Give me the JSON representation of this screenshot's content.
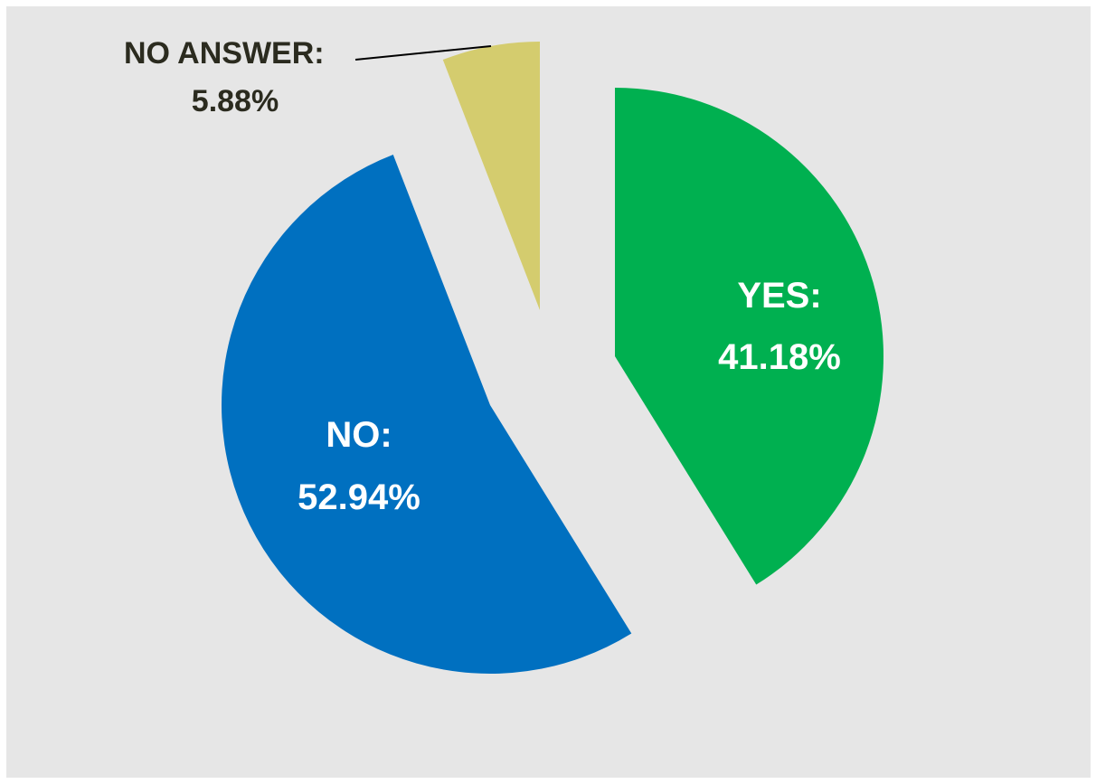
{
  "chart_data": {
    "type": "pie",
    "title": "",
    "slices": [
      {
        "label": "YES:",
        "value_label": "41.18%",
        "value": 41.18,
        "color": "#00b050"
      },
      {
        "label": "NO:",
        "value_label": "52.94%",
        "value": 52.94,
        "color": "#0070c0"
      },
      {
        "label": "NO ANSWER:",
        "value_label": "5.88%",
        "value": 5.88,
        "color": "#d4cc6e"
      }
    ],
    "background_color": "#e6e6e6",
    "legend": "none",
    "exploded": true
  }
}
